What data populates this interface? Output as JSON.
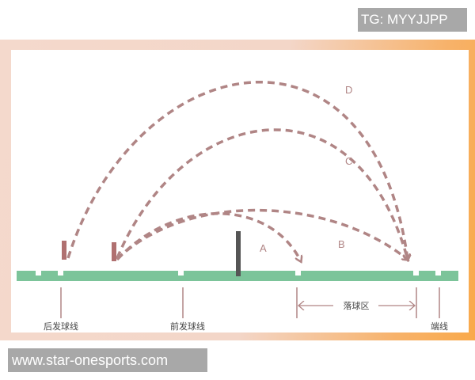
{
  "watermark_top": "TG: MYYJJPP",
  "watermark_bottom": "www.star-onesports.com",
  "trajectories": [
    "A",
    "B",
    "C",
    "D"
  ],
  "labels": {
    "back_service_line": "后发球线",
    "front_service_line": "前发球线",
    "landing_zone": "落球区",
    "end_line": "端线"
  },
  "colors": {
    "court": "#7cc49a",
    "trajectory": "#b08585",
    "net": "#555555",
    "player": "#b07070"
  }
}
